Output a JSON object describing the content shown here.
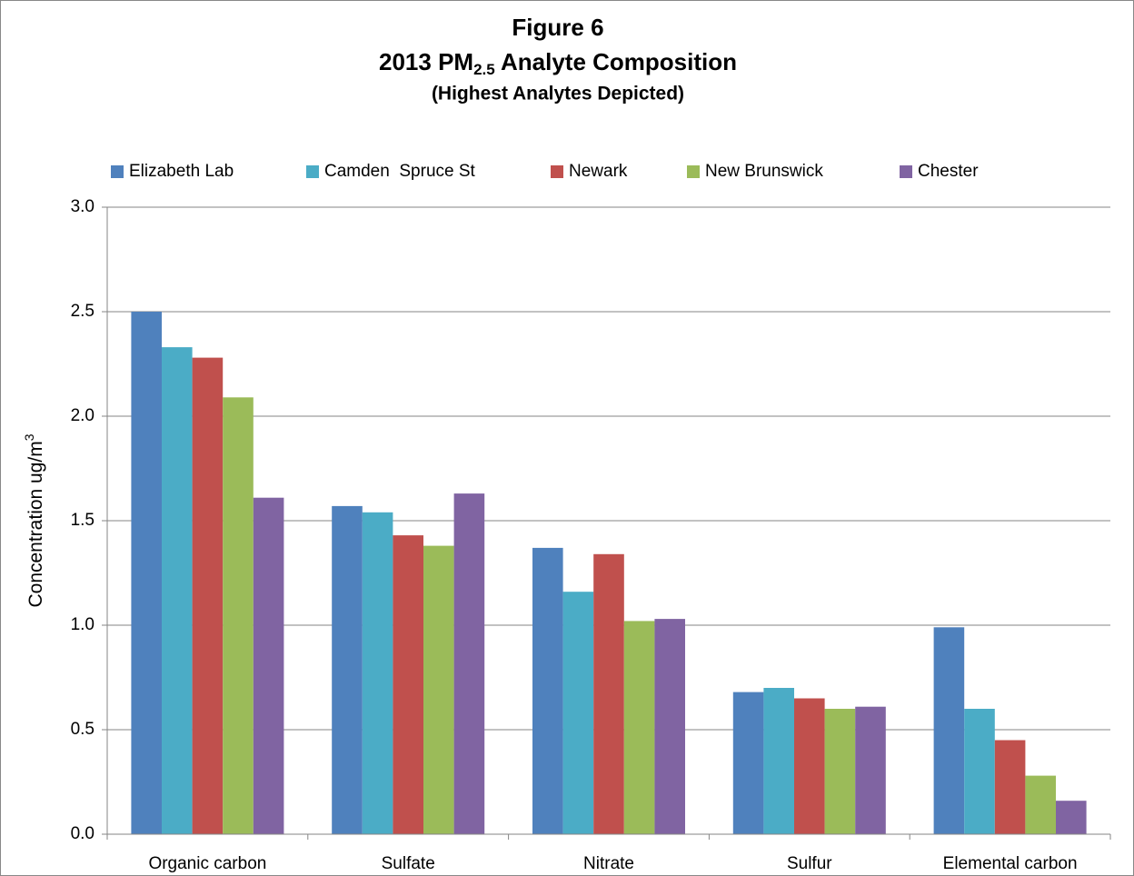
{
  "chart_data": {
    "type": "bar",
    "title": "Figure 6",
    "subtitle": [
      "2013 PM",
      "2.5",
      " Analyte Composition"
    ],
    "note": "(Highest Analytes Depicted)",
    "y_label": [
      "Concentration ug/m",
      "3"
    ],
    "categories": [
      "Organic carbon",
      "Sulfate",
      "Nitrate",
      "Sulfur",
      "Elemental carbon"
    ],
    "series": [
      {
        "name": "Elizabeth Lab",
        "color": "#4f81bd",
        "values": [
          2.5,
          1.57,
          1.37,
          0.68,
          0.99
        ]
      },
      {
        "name": "Camden  Spruce St",
        "color": "#4bacc6",
        "values": [
          2.33,
          1.54,
          1.16,
          0.7,
          0.6
        ]
      },
      {
        "name": "Newark",
        "color": "#c0504d",
        "values": [
          2.28,
          1.43,
          1.34,
          0.65,
          0.45
        ]
      },
      {
        "name": "New Brunswick",
        "color": "#9bbb59",
        "values": [
          2.09,
          1.38,
          1.02,
          0.6,
          0.28
        ]
      },
      {
        "name": "Chester",
        "color": "#8064a2",
        "values": [
          1.61,
          1.63,
          1.03,
          0.61,
          0.16
        ]
      }
    ],
    "ylim": [
      0,
      3
    ],
    "yticks": [
      {
        "value": 0,
        "label": "0.0"
      },
      0.5,
      {
        "value": 1,
        "label": "1.0"
      },
      1.5,
      {
        "value": 2,
        "label": "2.0"
      },
      2.5,
      {
        "value": 3,
        "label": "3.0"
      }
    ],
    "grid": true
  }
}
